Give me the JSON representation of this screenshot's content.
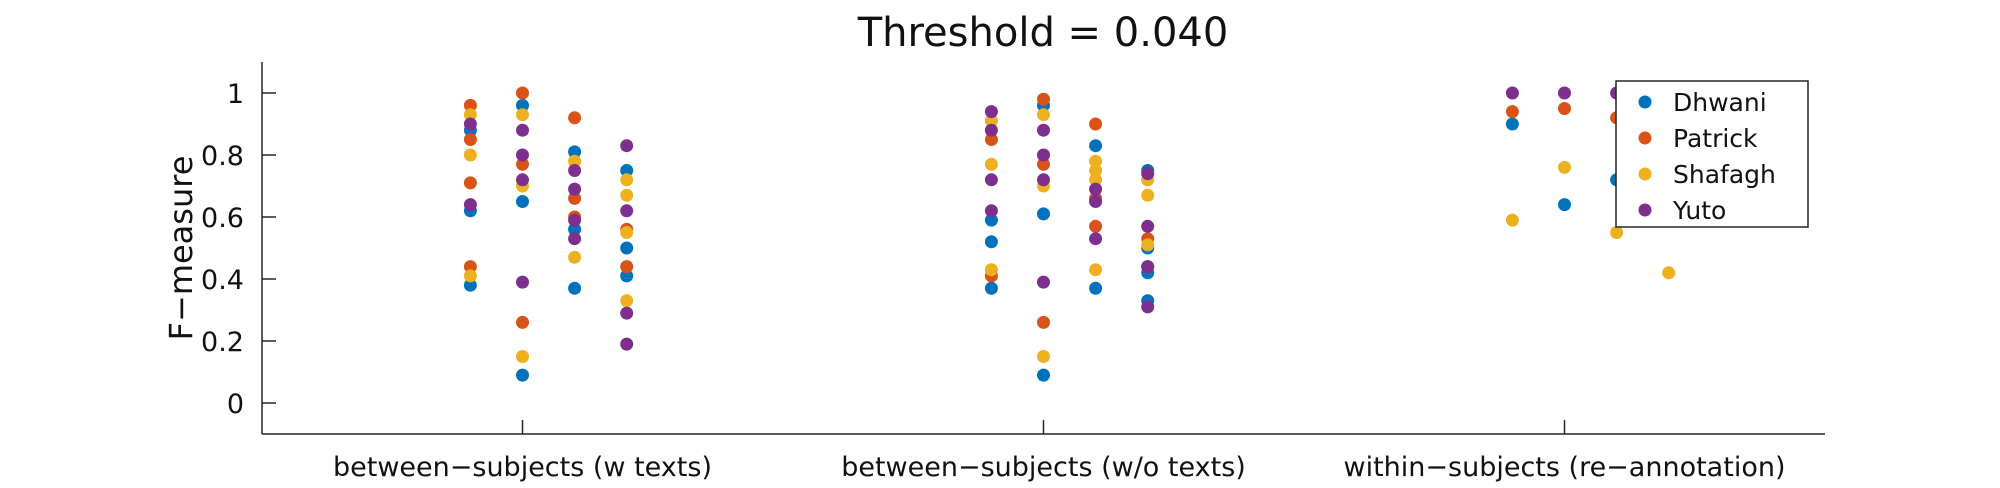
{
  "chart_data": {
    "type": "scatter",
    "title": "Threshold = 0.040",
    "ylabel": "F−measure",
    "xlabel": "",
    "ylim": [
      -0.1,
      1.1
    ],
    "yticks": [
      0,
      0.2,
      0.4,
      0.6,
      0.8,
      1
    ],
    "ytick_labels": [
      "0",
      "0.2",
      "0.4",
      "0.6",
      "0.8",
      "1"
    ],
    "categories": [
      "between−subjects (w texts)",
      "between−subjects (w/o texts)",
      "within−subjects (re−annotation)"
    ],
    "grid": false,
    "legend_position": "top-right",
    "series": [
      {
        "name": "Dhwani",
        "color": "#0072BD",
        "points": [
          {
            "x": 0.9,
            "y": 0.38
          },
          {
            "x": 0.9,
            "y": 0.62
          },
          {
            "x": 0.9,
            "y": 0.88
          },
          {
            "x": 1.0,
            "y": 0.09
          },
          {
            "x": 1.0,
            "y": 0.65
          },
          {
            "x": 1.0,
            "y": 0.96
          },
          {
            "x": 1.1,
            "y": 0.37
          },
          {
            "x": 1.1,
            "y": 0.56
          },
          {
            "x": 1.1,
            "y": 0.81
          },
          {
            "x": 1.2,
            "y": 0.41
          },
          {
            "x": 1.2,
            "y": 0.5
          },
          {
            "x": 1.2,
            "y": 0.75
          },
          {
            "x": 1.9,
            "y": 0.37
          },
          {
            "x": 1.9,
            "y": 0.52
          },
          {
            "x": 1.9,
            "y": 0.59
          },
          {
            "x": 2.0,
            "y": 0.09
          },
          {
            "x": 2.0,
            "y": 0.61
          },
          {
            "x": 2.0,
            "y": 0.96
          },
          {
            "x": 2.1,
            "y": 0.37
          },
          {
            "x": 2.1,
            "y": 0.83
          },
          {
            "x": 2.2,
            "y": 0.33
          },
          {
            "x": 2.2,
            "y": 0.42
          },
          {
            "x": 2.2,
            "y": 0.5
          },
          {
            "x": 2.2,
            "y": 0.75
          },
          {
            "x": 2.9,
            "y": 0.9
          },
          {
            "x": 3.0,
            "y": 0.64
          },
          {
            "x": 3.1,
            "y": 0.72
          },
          {
            "x": 3.2,
            "y": 0.69
          }
        ]
      },
      {
        "name": "Patrick",
        "color": "#D95319",
        "points": [
          {
            "x": 0.9,
            "y": 0.44
          },
          {
            "x": 0.9,
            "y": 0.71
          },
          {
            "x": 0.9,
            "y": 0.85
          },
          {
            "x": 0.9,
            "y": 0.96
          },
          {
            "x": 1.0,
            "y": 0.26
          },
          {
            "x": 1.0,
            "y": 0.77
          },
          {
            "x": 1.0,
            "y": 1.0
          },
          {
            "x": 1.1,
            "y": 0.6
          },
          {
            "x": 1.1,
            "y": 0.66
          },
          {
            "x": 1.1,
            "y": 0.92
          },
          {
            "x": 1.2,
            "y": 0.44
          },
          {
            "x": 1.2,
            "y": 0.56
          },
          {
            "x": 1.9,
            "y": 0.41
          },
          {
            "x": 1.9,
            "y": 0.85
          },
          {
            "x": 2.0,
            "y": 0.26
          },
          {
            "x": 2.0,
            "y": 0.77
          },
          {
            "x": 2.0,
            "y": 0.98
          },
          {
            "x": 2.1,
            "y": 0.57
          },
          {
            "x": 2.1,
            "y": 0.66
          },
          {
            "x": 2.1,
            "y": 0.9
          },
          {
            "x": 2.2,
            "y": 0.44
          },
          {
            "x": 2.2,
            "y": 0.53
          },
          {
            "x": 2.9,
            "y": 0.94
          },
          {
            "x": 3.0,
            "y": 0.95
          },
          {
            "x": 3.1,
            "y": 0.92
          },
          {
            "x": 3.2,
            "y": 0.6
          }
        ]
      },
      {
        "name": "Shafagh",
        "color": "#EDB120",
        "points": [
          {
            "x": 0.9,
            "y": 0.41
          },
          {
            "x": 0.9,
            "y": 0.8
          },
          {
            "x": 0.9,
            "y": 0.93
          },
          {
            "x": 1.0,
            "y": 0.15
          },
          {
            "x": 1.0,
            "y": 0.7
          },
          {
            "x": 1.0,
            "y": 0.93
          },
          {
            "x": 1.1,
            "y": 0.47
          },
          {
            "x": 1.1,
            "y": 0.78
          },
          {
            "x": 1.2,
            "y": 0.33
          },
          {
            "x": 1.2,
            "y": 0.55
          },
          {
            "x": 1.2,
            "y": 0.67
          },
          {
            "x": 1.2,
            "y": 0.72
          },
          {
            "x": 1.9,
            "y": 0.43
          },
          {
            "x": 1.9,
            "y": 0.77
          },
          {
            "x": 1.9,
            "y": 0.91
          },
          {
            "x": 2.0,
            "y": 0.15
          },
          {
            "x": 2.0,
            "y": 0.7
          },
          {
            "x": 2.0,
            "y": 0.93
          },
          {
            "x": 2.1,
            "y": 0.43
          },
          {
            "x": 2.1,
            "y": 0.72
          },
          {
            "x": 2.1,
            "y": 0.75
          },
          {
            "x": 2.1,
            "y": 0.78
          },
          {
            "x": 2.2,
            "y": 0.51
          },
          {
            "x": 2.2,
            "y": 0.67
          },
          {
            "x": 2.2,
            "y": 0.72
          },
          {
            "x": 2.9,
            "y": 0.59
          },
          {
            "x": 3.0,
            "y": 0.76
          },
          {
            "x": 3.1,
            "y": 0.55
          },
          {
            "x": 3.2,
            "y": 0.42
          }
        ]
      },
      {
        "name": "Yuto",
        "color": "#7E2F8E",
        "points": [
          {
            "x": 0.9,
            "y": 0.64
          },
          {
            "x": 0.9,
            "y": 0.9
          },
          {
            "x": 1.0,
            "y": 0.39
          },
          {
            "x": 1.0,
            "y": 0.72
          },
          {
            "x": 1.0,
            "y": 0.8
          },
          {
            "x": 1.0,
            "y": 0.88
          },
          {
            "x": 1.1,
            "y": 0.53
          },
          {
            "x": 1.1,
            "y": 0.59
          },
          {
            "x": 1.1,
            "y": 0.69
          },
          {
            "x": 1.1,
            "y": 0.75
          },
          {
            "x": 1.2,
            "y": 0.19
          },
          {
            "x": 1.2,
            "y": 0.29
          },
          {
            "x": 1.2,
            "y": 0.62
          },
          {
            "x": 1.2,
            "y": 0.83
          },
          {
            "x": 1.9,
            "y": 0.62
          },
          {
            "x": 1.9,
            "y": 0.72
          },
          {
            "x": 1.9,
            "y": 0.88
          },
          {
            "x": 1.9,
            "y": 0.94
          },
          {
            "x": 2.0,
            "y": 0.39
          },
          {
            "x": 2.0,
            "y": 0.72
          },
          {
            "x": 2.0,
            "y": 0.8
          },
          {
            "x": 2.0,
            "y": 0.88
          },
          {
            "x": 2.1,
            "y": 0.53
          },
          {
            "x": 2.1,
            "y": 0.65
          },
          {
            "x": 2.1,
            "y": 0.69
          },
          {
            "x": 2.2,
            "y": 0.31
          },
          {
            "x": 2.2,
            "y": 0.44
          },
          {
            "x": 2.2,
            "y": 0.57
          },
          {
            "x": 2.2,
            "y": 0.74
          },
          {
            "x": 2.9,
            "y": 1.0
          },
          {
            "x": 3.0,
            "y": 1.0
          },
          {
            "x": 3.1,
            "y": 1.0
          },
          {
            "x": 3.2,
            "y": 0.78
          }
        ]
      }
    ]
  }
}
